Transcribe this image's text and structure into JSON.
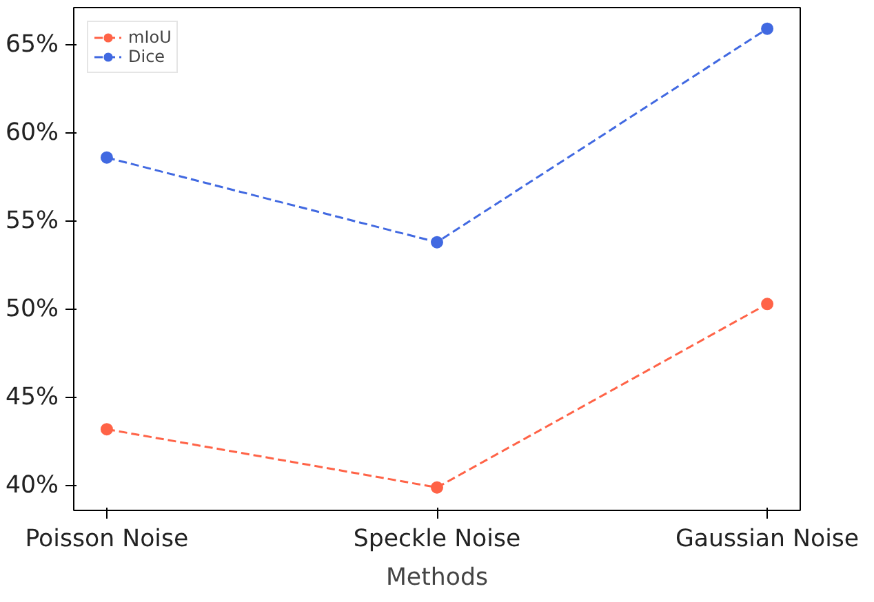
{
  "chart_data": {
    "type": "line",
    "xlabel": "Methods",
    "categories": [
      "Poisson Noise",
      "Speckle Noise",
      "Gaussian Noise"
    ],
    "series": [
      {
        "name": "mIoU",
        "color": "#ff6347",
        "values": [
          43.2,
          39.9,
          50.3
        ]
      },
      {
        "name": "Dice",
        "color": "#4169e1",
        "values": [
          58.6,
          53.8,
          65.9
        ]
      }
    ],
    "ylim": [
      38.6,
      67.1
    ],
    "yticks": [
      {
        "value": 40,
        "label": "40%"
      },
      {
        "value": 45,
        "label": "45%"
      },
      {
        "value": 50,
        "label": "50%"
      },
      {
        "value": 55,
        "label": "55%"
      },
      {
        "value": 60,
        "label": "60%"
      },
      {
        "value": 65,
        "label": "65%"
      }
    ],
    "marker": "circle",
    "line_style": "dashed",
    "legend": "top left",
    "grid": false
  }
}
